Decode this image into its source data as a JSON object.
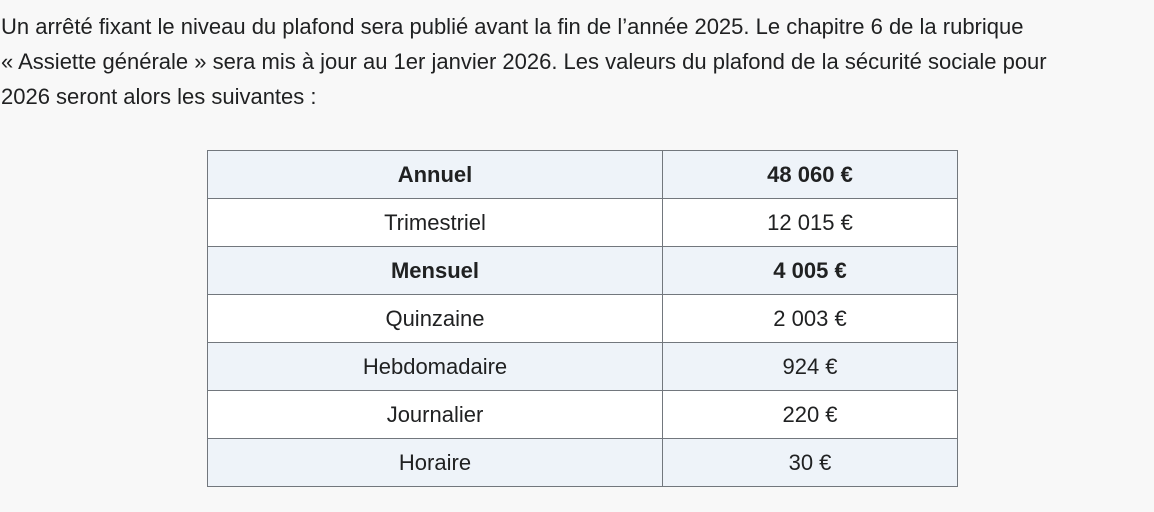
{
  "colors": {
    "page_bg": "#f8f8f8",
    "text": "#202122",
    "table_border": "#72777d",
    "row_stripe_bg": "#eef3f9",
    "row_plain_bg": "#ffffff"
  },
  "paragraph": {
    "lines": [
      "Un arrêté fixant le niveau du plafond sera publié avant la fin de l’année 2025. Le chapitre 6 de la rubrique",
      "« Assiette générale » sera mis à jour au 1er janvier 2026. Les valeurs du plafond de la sécurité sociale pour",
      "2026 seront alors les suivantes :"
    ]
  },
  "table": {
    "rows": [
      {
        "period": "Annuel",
        "amount": "48 060 €",
        "bold": true,
        "striped": true
      },
      {
        "period": "Trimestriel",
        "amount": "12 015 €",
        "bold": false,
        "striped": false
      },
      {
        "period": "Mensuel",
        "amount": "4 005 €",
        "bold": true,
        "striped": true
      },
      {
        "period": "Quinzaine",
        "amount": "2 003 €",
        "bold": false,
        "striped": false
      },
      {
        "period": "Hebdomadaire",
        "amount": "924 €",
        "bold": false,
        "striped": true
      },
      {
        "period": "Journalier",
        "amount": "220 €",
        "bold": false,
        "striped": false
      },
      {
        "period": "Horaire",
        "amount": "30 €",
        "bold": false,
        "striped": true
      }
    ]
  }
}
